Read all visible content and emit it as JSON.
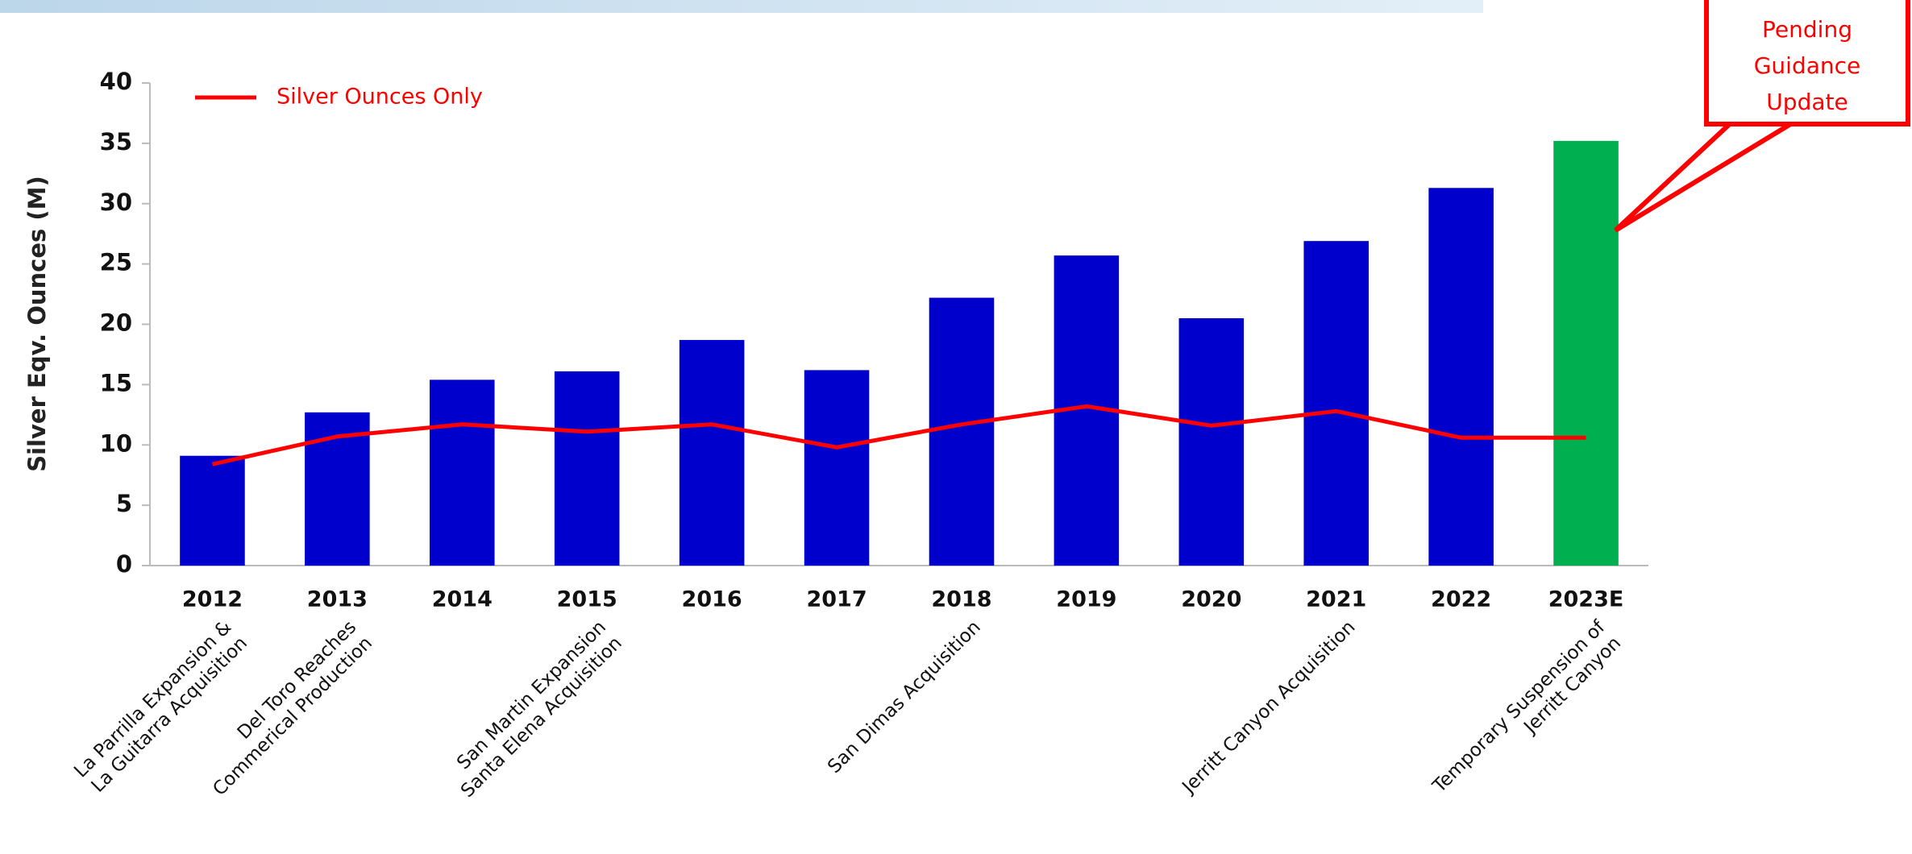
{
  "chart_data": {
    "type": "bar",
    "y_label": "Silver  Eqv. Ounces (M)",
    "categories": [
      "2012",
      "2013",
      "2014",
      "2015",
      "2016",
      "2017",
      "2018",
      "2019",
      "2020",
      "2021",
      "2022",
      "2023E"
    ],
    "series": [
      {
        "type": "bar",
        "colors": [
          "#0000cc",
          "#0000cc",
          "#0000cc",
          "#0000cc",
          "#0000cc",
          "#0000cc",
          "#0000cc",
          "#0000cc",
          "#0000cc",
          "#0000cc",
          "#0000cc",
          "#00b050"
        ],
        "values": [
          9.1,
          12.7,
          15.4,
          16.1,
          18.7,
          16.2,
          22.2,
          25.7,
          20.5,
          26.9,
          31.3,
          35.2
        ]
      },
      {
        "type": "line",
        "name": "Silver Ounces Only",
        "color": "#ff0000",
        "values": [
          8.4,
          10.7,
          11.7,
          11.1,
          11.7,
          9.8,
          11.7,
          13.2,
          11.6,
          12.8,
          10.6,
          10.6
        ]
      }
    ],
    "milestones": [
      [
        "La Parrilla Expansion &",
        "La Guitarra Acquisition"
      ],
      [
        "Del Toro Reaches",
        "Commerical Production"
      ],
      null,
      [
        "San Martin Expansion",
        "Santa Elena Acquisition"
      ],
      null,
      null,
      [
        "San Dimas Acquisition"
      ],
      null,
      null,
      [
        "Jerritt Canyon Acquisition"
      ],
      null,
      [
        "Temporary Suspension of",
        "Jerritt Canyon"
      ]
    ],
    "callout": [
      "Pending",
      "Guidance",
      "Update"
    ],
    "ylim": [
      0,
      40
    ],
    "yticks": [
      0,
      5,
      10,
      15,
      20,
      25,
      30,
      35,
      40
    ],
    "legend": "top-left"
  }
}
